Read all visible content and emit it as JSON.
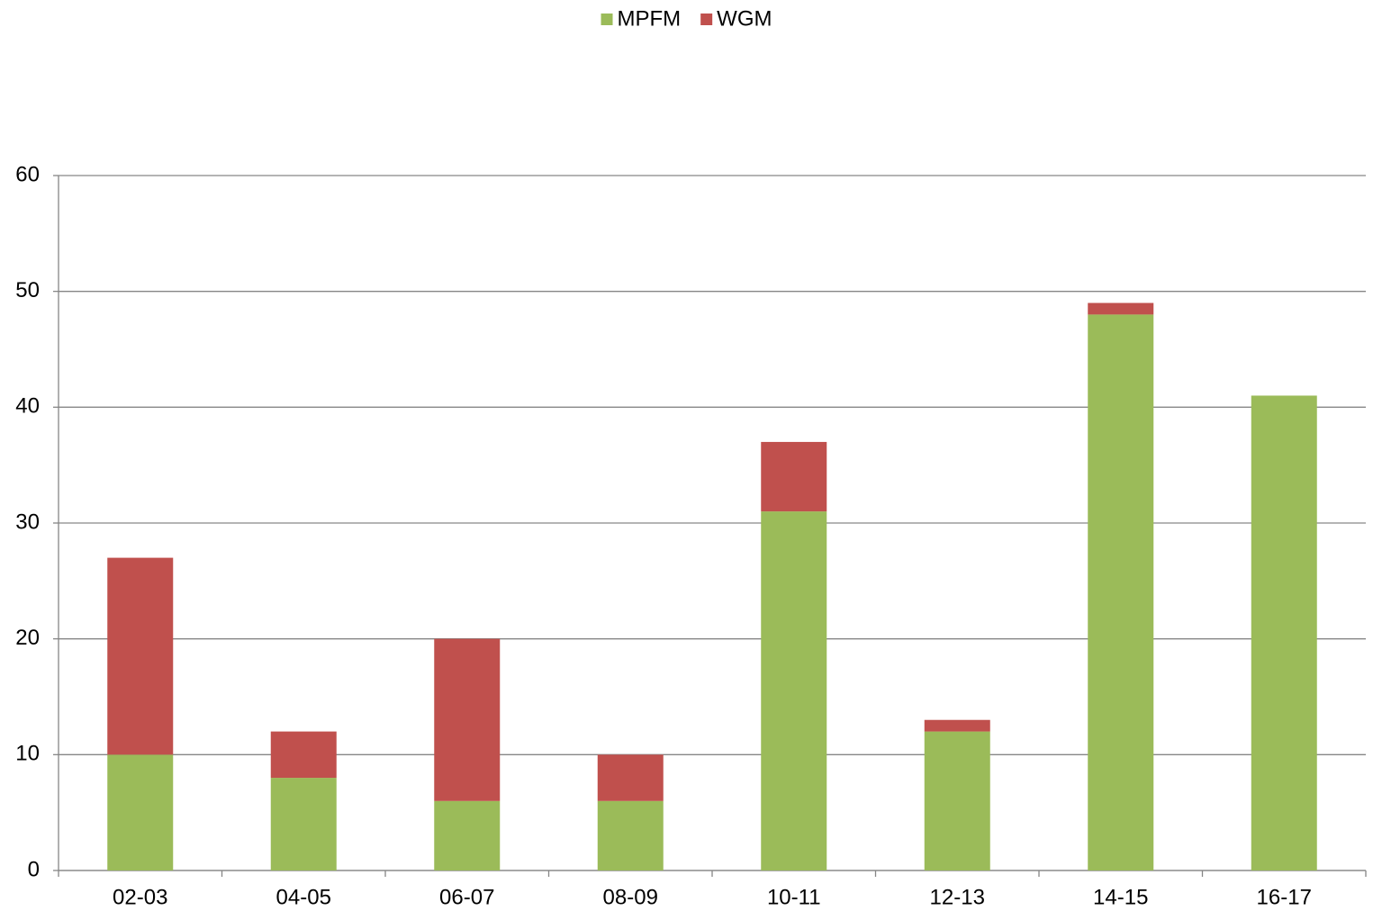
{
  "chart_data": {
    "type": "stacked-bar",
    "categories": [
      "02-03",
      "04-05",
      "06-07",
      "08-09",
      "10-11",
      "12-13",
      "14-15",
      "16-17"
    ],
    "series": [
      {
        "name": "MPFM",
        "color": "#9bbb59",
        "values": [
          10,
          8,
          6,
          6,
          31,
          12,
          48,
          41
        ]
      },
      {
        "name": "WGM",
        "color": "#c0504d",
        "values": [
          17,
          4,
          14,
          4,
          6,
          1,
          1,
          0
        ]
      }
    ],
    "ylim": [
      0,
      60
    ],
    "yticks": [
      0,
      10,
      20,
      30,
      40,
      50,
      60
    ],
    "grid": true,
    "legend": "top"
  }
}
